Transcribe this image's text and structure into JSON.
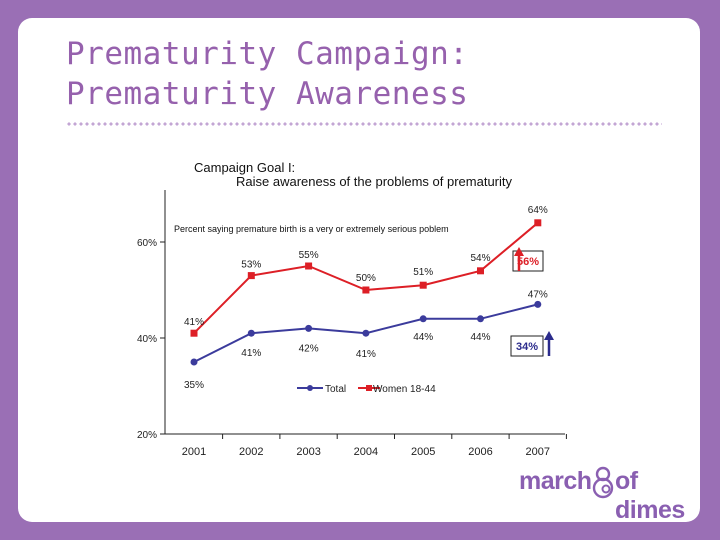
{
  "slide": {
    "title_line1": "Prematurity Campaign:",
    "title_line2": "Prematurity Awareness",
    "logo_word1": "march",
    "logo_word2": "of dimes",
    "logo_mark": "®"
  },
  "chart_data": {
    "type": "line",
    "title": "Campaign Goal I:",
    "subtitle": "Raise awareness of the problems of prematurity",
    "annotation": "Percent saying premature birth is a very or extremely serious poblem",
    "categories": [
      "2001",
      "2002",
      "2003",
      "2004",
      "2005",
      "2006",
      "2007"
    ],
    "ylim": [
      20,
      70
    ],
    "yticks": [
      "20%",
      "40%",
      "60%"
    ],
    "ytick_values": [
      20,
      40,
      60
    ],
    "series": [
      {
        "name": "Total",
        "color": "#3b3b9c",
        "marker": "circle",
        "values": [
          35,
          41,
          42,
          41,
          44,
          44,
          47
        ],
        "labels": [
          "35%",
          "41%",
          "42%",
          "41%",
          "44%",
          "44%",
          "47%"
        ]
      },
      {
        "name": "Women 18-44",
        "color": "#dd1f26",
        "marker": "square",
        "values": [
          41,
          53,
          55,
          50,
          51,
          54,
          64
        ],
        "labels": [
          "41%",
          "53%",
          "55%",
          "50%",
          "51%",
          "54%",
          "64%"
        ]
      }
    ],
    "boxed_labels": [
      {
        "text": "56%",
        "color": "#dd1f26",
        "arrow": "up"
      },
      {
        "text": "34%",
        "color": "#2b2b8c",
        "arrow": "up"
      }
    ],
    "legend_position": "bottom-center"
  }
}
